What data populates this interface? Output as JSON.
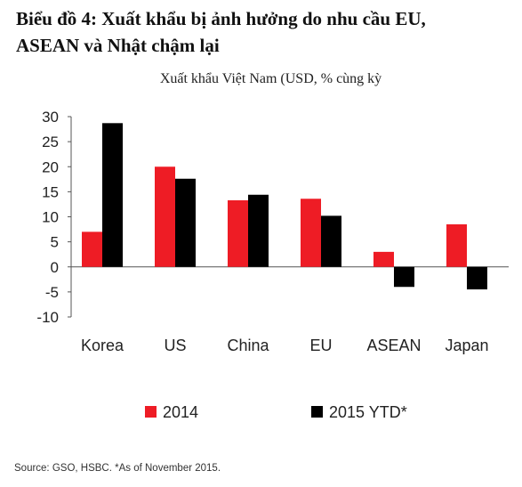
{
  "title_line1": "Biểu đồ 4: Xuất khẩu bị ảnh hưởng do nhu cầu EU,",
  "title_line2": "ASEAN và Nhật chậm lại",
  "chart_data": {
    "type": "bar",
    "title": "Xuất khẩu Việt Nam (USD, % cùng kỳ",
    "categories": [
      "Korea",
      "US",
      "China",
      "EU",
      "ASEAN",
      "Japan"
    ],
    "series": [
      {
        "name": "2014",
        "color": "#ee1c25",
        "values": [
          7,
          20,
          13.3,
          13.6,
          3,
          8.5
        ]
      },
      {
        "name": "2015 YTD*",
        "color": "#000000",
        "values": [
          28.7,
          17.6,
          14.4,
          10.2,
          -4,
          -4.5
        ]
      }
    ],
    "yticks": [
      30,
      25,
      20,
      15,
      10,
      5,
      0,
      -5,
      -10
    ],
    "ylim": [
      -10,
      30
    ],
    "grid": false,
    "legend_position": "bottom"
  },
  "source": "Source: GSO, HSBC. *As of November 2015."
}
